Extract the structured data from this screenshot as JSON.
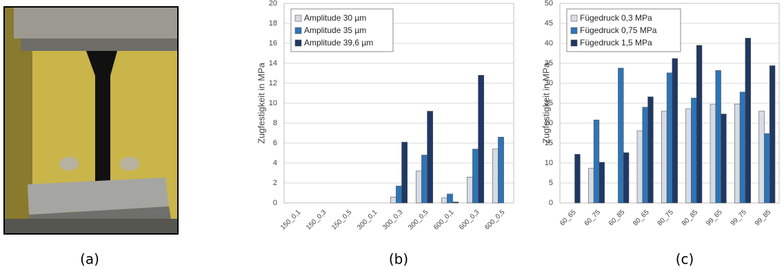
{
  "panel_labels": [
    "(a)",
    "(b)",
    "(c)"
  ],
  "chart_data": [
    {
      "type": "bar",
      "y_label": "Zugfestigkeit in MPa",
      "categories": [
        "150_0,1",
        "150_0,3",
        "150_0,5",
        "300_0,1",
        "300_0,3",
        "300_0,5",
        "600_0,1",
        "600_0,3",
        "600_0,5"
      ],
      "series": [
        {
          "name": "Amplitude 30 µm",
          "color": "#d6dce5",
          "values": [
            0,
            0,
            0,
            0,
            0.6,
            3.2,
            0.5,
            2.6,
            5.4
          ]
        },
        {
          "name": "Amplitude 35 µm",
          "color": "#2e75b6",
          "values": [
            0,
            0,
            0,
            0,
            1.7,
            4.8,
            0.9,
            5.4,
            6.6
          ]
        },
        {
          "name": "Amplitude 39,6 µm",
          "color": "#1f3864",
          "values": [
            0,
            0,
            0,
            0,
            6.1,
            9.2,
            0.1,
            12.8,
            null
          ]
        }
      ],
      "ylim": [
        0,
        20
      ],
      "yticks": [
        0,
        2,
        4,
        6,
        8,
        10,
        12,
        14,
        16,
        18,
        20
      ],
      "grid": true,
      "legend": "upper left"
    },
    {
      "type": "bar",
      "y_label": "Zugfestigkeit in MPa",
      "categories": [
        "60_65",
        "60_75",
        "60_85",
        "80_65",
        "80_75",
        "80_85",
        "99_65",
        "99_75",
        "99_85"
      ],
      "series": [
        {
          "name": "Fügedruck 0,3 MPa",
          "color": "#d6dce5",
          "values": [
            null,
            8.7,
            null,
            18.1,
            23,
            23.6,
            24.7,
            24.8,
            23
          ]
        },
        {
          "name": "Fügedruck 0,75 MPa",
          "color": "#2e75b6",
          "values": [
            null,
            20.8,
            33.8,
            24,
            32.6,
            26.3,
            33.2,
            27.8,
            17.4
          ]
        },
        {
          "name": "Fügedruck 1,5 MPa",
          "color": "#1f3864",
          "values": [
            12.2,
            10.2,
            12.6,
            26.6,
            36.2,
            39.5,
            22.3,
            41.3,
            34.4
          ]
        }
      ],
      "ylim": [
        0,
        50
      ],
      "yticks": [
        0,
        5,
        10,
        15,
        20,
        25,
        30,
        35,
        40,
        45,
        50
      ],
      "grid": true,
      "legend": "upper left"
    }
  ]
}
